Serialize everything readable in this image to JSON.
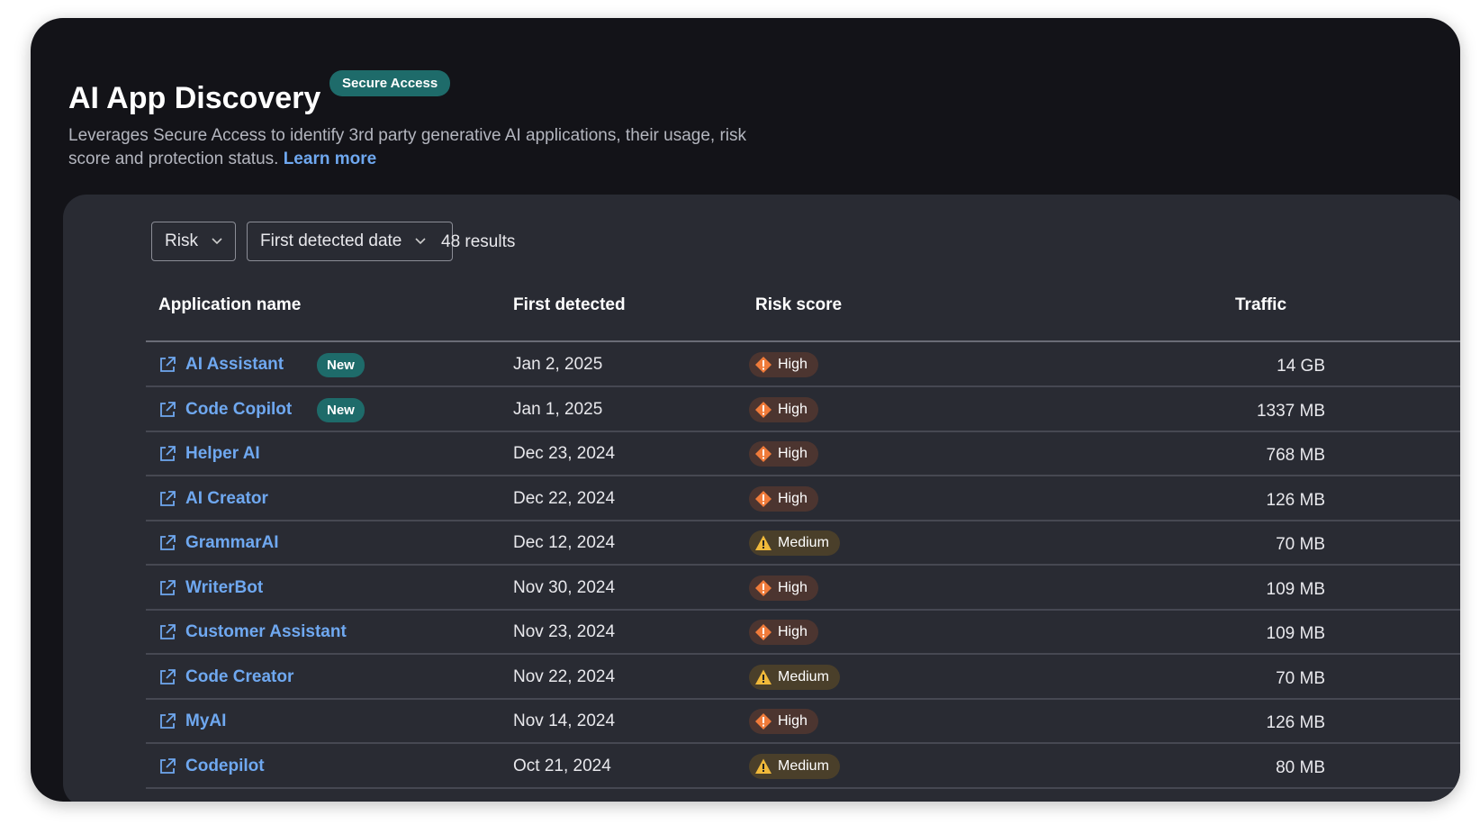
{
  "header": {
    "title": "AI App Discovery",
    "badge": "Secure Access",
    "description": "Leverages Secure Access to identify 3rd party generative AI applications, their usage, risk score and protection status.",
    "link": "Learn more"
  },
  "toolbar": {
    "filters": [
      "Risk",
      "First detected date"
    ],
    "results": "48 results"
  },
  "table": {
    "columns": [
      "Application name",
      "First detected",
      "Risk score",
      "Traffic"
    ],
    "rows": [
      {
        "name": "AI Assistant",
        "tag": "New",
        "first_detected": "Jan 2, 2025",
        "risk": "High",
        "traffic": "14 GB"
      },
      {
        "name": "Code Copilot",
        "tag": "New",
        "first_detected": "Jan 1, 2025",
        "risk": "High",
        "traffic": "1337 MB"
      },
      {
        "name": "Helper AI",
        "first_detected": "Dec 23, 2024",
        "risk": "High",
        "traffic": "768 MB"
      },
      {
        "name": "AI Creator",
        "first_detected": "Dec 22, 2024",
        "risk": "High",
        "traffic": "126 MB"
      },
      {
        "name": "GrammarAI",
        "first_detected": "Dec 12, 2024",
        "risk": "Medium",
        "traffic": "70 MB"
      },
      {
        "name": "WriterBot",
        "first_detected": "Nov 30, 2024",
        "risk": "High",
        "traffic": "109 MB"
      },
      {
        "name": "Customer Assistant",
        "first_detected": "Nov 23, 2024",
        "risk": "High",
        "traffic": "109 MB"
      },
      {
        "name": "Code Creator",
        "first_detected": "Nov 22, 2024",
        "risk": "Medium",
        "traffic": "70 MB"
      },
      {
        "name": "MyAI",
        "first_detected": "Nov 14, 2024",
        "risk": "High",
        "traffic": "126 MB"
      },
      {
        "name": "Codepilot",
        "first_detected": "Oct 21, 2024",
        "risk": "Medium",
        "traffic": "80 MB"
      }
    ]
  }
}
